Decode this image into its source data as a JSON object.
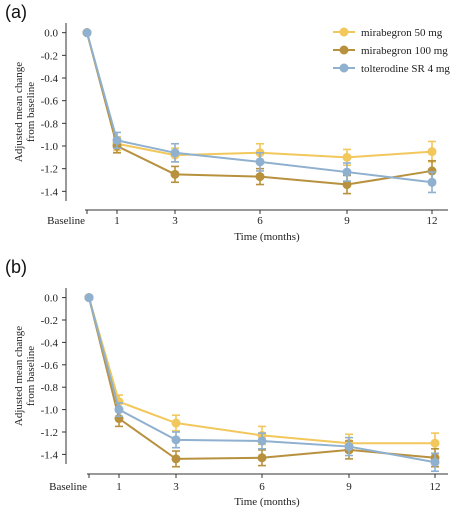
{
  "chart_data": [
    {
      "type": "line",
      "panel_label": "(a)",
      "categories": [
        "Baseline",
        "1",
        "3",
        "6",
        "9",
        "12"
      ],
      "x": [
        0,
        1,
        3,
        6,
        9,
        12
      ],
      "xlabel": "Time (months)",
      "ylabel": [
        "Adjusted mean change",
        "from baseline"
      ],
      "y_ticks": [
        "0.0",
        "-0.2",
        "-0.4",
        "-0.6",
        "-0.8",
        "-1.0",
        "-1.2",
        "-1.4"
      ],
      "ylim": [
        -1.45,
        0.05
      ],
      "error_bars": true,
      "legend": "top-right",
      "series": [
        {
          "name": "mirabegron 50 mg",
          "color": "#f2c75c",
          "values": [
            0.0,
            -0.98,
            -1.08,
            -1.06,
            -1.1,
            -1.05
          ],
          "err": [
            0,
            0.06,
            0.06,
            0.08,
            0.07,
            0.09
          ]
        },
        {
          "name": "mirabegron 100 mg",
          "color": "#b8913e",
          "values": [
            0.0,
            -1.0,
            -1.25,
            -1.27,
            -1.34,
            -1.22
          ],
          "err": [
            0,
            0.06,
            0.07,
            0.07,
            0.08,
            0.09
          ]
        },
        {
          "name": "tolterodine SR 4 mg",
          "color": "#8fb0cf",
          "values": [
            0.0,
            -0.95,
            -1.06,
            -1.14,
            -1.23,
            -1.32
          ],
          "err": [
            0,
            0.07,
            0.08,
            0.08,
            0.08,
            0.09
          ]
        }
      ]
    },
    {
      "type": "line",
      "panel_label": "(b)",
      "categories": [
        "Baseline",
        "1",
        "3",
        "6",
        "9",
        "12"
      ],
      "x": [
        0,
        1,
        3,
        6,
        9,
        12
      ],
      "xlabel": "Time (months)",
      "ylabel": [
        "Adjusted mean change",
        "from baseline"
      ],
      "y_ticks": [
        "0.0",
        "-0.2",
        "-0.4",
        "-0.6",
        "-0.8",
        "-1.0",
        "-1.2",
        "-1.4"
      ],
      "ylim": [
        -1.45,
        0.05
      ],
      "error_bars": true,
      "series": [
        {
          "name": "mirabegron 50 mg",
          "color": "#f2c75c",
          "values": [
            0.0,
            -0.93,
            -1.12,
            -1.23,
            -1.3,
            -1.3
          ],
          "err": [
            0,
            0.06,
            0.07,
            0.08,
            0.08,
            0.09
          ]
        },
        {
          "name": "mirabegron 100 mg",
          "color": "#b8913e",
          "values": [
            0.0,
            -1.08,
            -1.44,
            -1.43,
            -1.36,
            -1.43
          ],
          "err": [
            0,
            0.07,
            0.07,
            0.07,
            0.08,
            0.08
          ]
        },
        {
          "name": "tolterodine SR 4 mg",
          "color": "#8fb0cf",
          "values": [
            0.0,
            -1.0,
            -1.27,
            -1.28,
            -1.33,
            -1.47
          ],
          "err": [
            0,
            0.06,
            0.07,
            0.07,
            0.08,
            0.08
          ]
        }
      ]
    }
  ]
}
